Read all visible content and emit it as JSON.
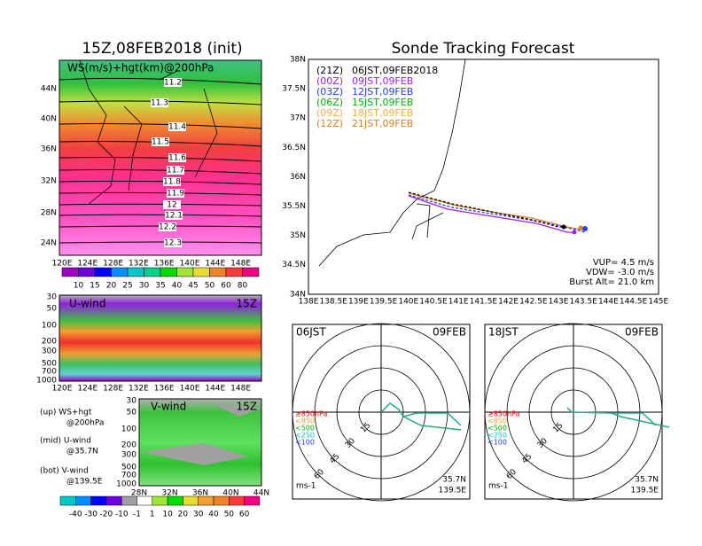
{
  "left_top": {
    "title": "15Z,08FEB2018 (init)",
    "label": "WS(m/s)+hgt(km)@200hPa",
    "contour_labels": [
      "11.2",
      "11.3",
      "11.4",
      "11.5",
      "11.6",
      "11.7",
      "11.8",
      "11.9",
      "12",
      "12.1",
      "12.2",
      "12.3"
    ],
    "lat_ticks": [
      "44N",
      "40N",
      "36N",
      "32N",
      "28N",
      "24N"
    ],
    "lon_ticks": [
      "120E",
      "124E",
      "128E",
      "132E",
      "136E",
      "140E",
      "144E",
      "148E"
    ],
    "colorbar": [
      "10",
      "15",
      "20",
      "25",
      "30",
      "35",
      "40",
      "45",
      "50",
      "60",
      "80"
    ]
  },
  "u_wind": {
    "label": "U-wind",
    "time": "15Z",
    "p_ticks": [
      "30",
      "50",
      "100",
      "200",
      "300",
      "500",
      "700",
      "1000"
    ],
    "lon_ticks": [
      "120E",
      "124E",
      "128E",
      "132E",
      "136E",
      "140E",
      "144E",
      "148E"
    ]
  },
  "v_wind": {
    "label": "V-wind",
    "time": "15Z",
    "p_ticks": [
      "30",
      "50",
      "100",
      "200",
      "300",
      "500",
      "700",
      "1000"
    ],
    "lat_ticks": [
      "28N",
      "32N",
      "36N",
      "40N",
      "44N"
    ]
  },
  "notes": [
    "(up) WS+hgt",
    "@200hPa",
    "(mid) U-wind",
    "@35.7N",
    "(bot) V-wind",
    "@139.5E"
  ],
  "bottom_colorbar": [
    "-40",
    "-30",
    "-20",
    "-10",
    "-1",
    "1",
    "10",
    "20",
    "30",
    "40",
    "50",
    "60"
  ],
  "tracking": {
    "title": "Sonde Tracking Forecast",
    "legend": [
      {
        "z": "(21Z)",
        "time": "06JST,09FEB2018",
        "color": "#000000"
      },
      {
        "z": "(00Z)",
        "time": "09JST,09FEB",
        "color": "#a020f0"
      },
      {
        "z": "(03Z)",
        "time": "12JST,09FEB",
        "color": "#2040ff"
      },
      {
        "z": "(06Z)",
        "time": "15JST,09FEB",
        "color": "#00b400"
      },
      {
        "z": "(09Z)",
        "time": "18JST,09FEB",
        "color": "#f0b040"
      },
      {
        "z": "(12Z)",
        "time": "21JST,09FEB",
        "color": "#e08020"
      }
    ],
    "lat_ticks": [
      "38N",
      "37.5N",
      "37N",
      "36.5N",
      "36N",
      "35.5N",
      "35N",
      "34.5N",
      "34N"
    ],
    "lon_ticks": [
      "138E",
      "138.5E",
      "139E",
      "139.5E",
      "140E",
      "140.5E",
      "141E",
      "141.5E",
      "142E",
      "142.5E",
      "143E",
      "143.5E",
      "144E",
      "144.5E",
      "145E"
    ],
    "stats": [
      "VUP= 4.5 m/s",
      "VDW= -3.0 m/s",
      "Burst Alt= 21.0 km"
    ]
  },
  "hodographs": [
    {
      "time": "06JST",
      "date": "09FEB",
      "levels": [
        "≥850hPa",
        "<850",
        "<500",
        "<250",
        "<100"
      ],
      "ring_labels": [
        "15",
        "30",
        "45",
        "60"
      ],
      "unit": "ms-1",
      "lat": "35.7N",
      "lon": "139.5E"
    },
    {
      "time": "18JST",
      "date": "09FEB",
      "levels": [
        "≥850hPa",
        "<850",
        "<500",
        "<250",
        "<100"
      ],
      "ring_labels": [
        "15",
        "30",
        "45",
        "60"
      ],
      "unit": "ms-1",
      "lat": "35.7N",
      "lon": "139.5E"
    }
  ]
}
